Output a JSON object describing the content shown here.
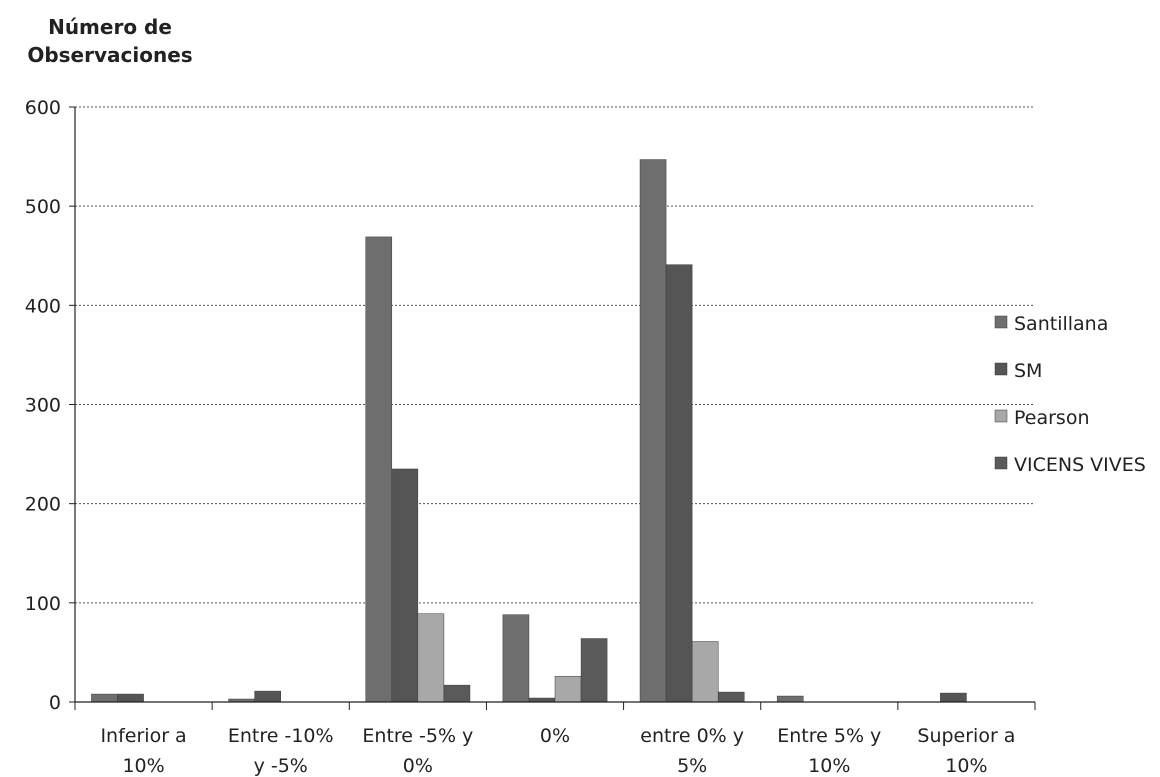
{
  "chart_data": {
    "type": "bar",
    "ylabel_lines": [
      "Número de",
      "Observaciones"
    ],
    "xlabel": "",
    "ylim": [
      0,
      600
    ],
    "yticks": [
      0,
      100,
      200,
      300,
      400,
      500,
      600
    ],
    "grid": true,
    "legend_position": "right",
    "categories": [
      [
        "Inferior a",
        "10%"
      ],
      [
        "Entre -10%",
        "y -5%"
      ],
      [
        "Entre -5% y",
        "0%"
      ],
      [
        "0%"
      ],
      [
        "entre 0% y",
        "5%"
      ],
      [
        "Entre 5% y",
        "10%"
      ],
      [
        "Superior a",
        "10%"
      ]
    ],
    "series": [
      {
        "name": "Santillana",
        "color": "#6e6e6e",
        "values": [
          8,
          3,
          469,
          88,
          547,
          6,
          0
        ]
      },
      {
        "name": "SM",
        "color": "#555555",
        "values": [
          8,
          11,
          235,
          4,
          441,
          0,
          9
        ]
      },
      {
        "name": "Pearson",
        "color": "#a8a8a8",
        "values": [
          0,
          0,
          89,
          26,
          61,
          0,
          0
        ]
      },
      {
        "name": "VICENS VIVES",
        "color": "#5a5a5a",
        "values": [
          0,
          0,
          17,
          64,
          10,
          0,
          0
        ]
      }
    ]
  }
}
